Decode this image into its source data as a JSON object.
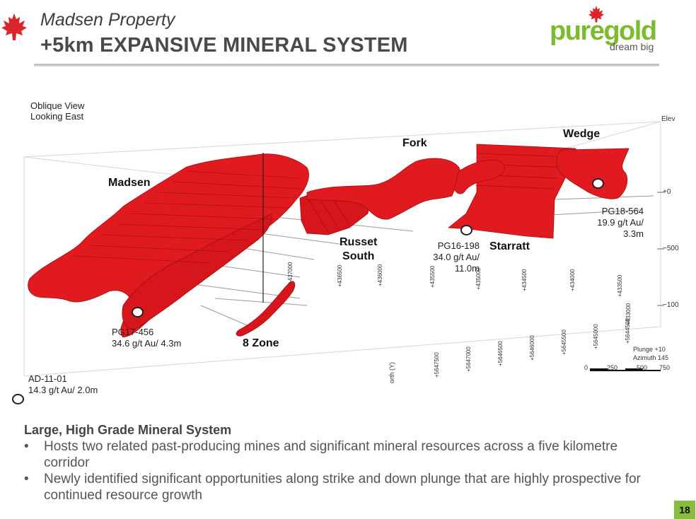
{
  "header": {
    "subtitle": "Madsen Property",
    "title": "+5km EXPANSIVE MINERAL SYSTEM"
  },
  "logo": {
    "brand": "puregold",
    "tagline": "dream big",
    "brand_color": "#7dbb2e",
    "icon": "maple-leaf-icon"
  },
  "figure": {
    "view_label": "Oblique View\nLooking East",
    "zones": {
      "madsen": "Madsen",
      "fork": "Fork",
      "wedge": "Wedge",
      "russet_south": "Russet\nSouth",
      "starratt": "Starratt",
      "eight_zone": "8 Zone"
    },
    "drill_holes": {
      "pg18": "PG18-564\n19.9 g/t Au/\n3.3m",
      "pg16": "PG16-198\n34.0 g/t Au/\n11.0m",
      "pg17": "PG17-456\n34.6 g/t Au/ 4.3m",
      "ad11": "AD-11-01\n14.3 g/t Au/ 2.0m"
    },
    "axis": {
      "elev": "Elev",
      "e0": "+0",
      "e500": "−500",
      "e1000": "−100",
      "north": "orth (Y)",
      "plunge": "Plunge +10",
      "azimuth": "Azimuth 145",
      "scale": [
        "0",
        "250",
        "500",
        "750"
      ],
      "eastings": [
        "+437000",
        "+436500",
        "+436000",
        "+435500",
        "+435000",
        "+434500",
        "+434000",
        "+433500",
        "+433000"
      ],
      "northings": [
        "+5647500",
        "+5647000",
        "+5646500",
        "+5646000",
        "+5645500",
        "+5645000",
        "+5644500"
      ]
    },
    "ore_color": "#e01a1f"
  },
  "bullets": {
    "heading": "Large, High Grade Mineral System",
    "items": [
      "Hosts two related past-producing mines and significant mineral resources across a five kilometre corridor",
      "Newly identified significant opportunities along strike and down plunge that are highly prospective for continued resource growth"
    ],
    "marker": "•"
  },
  "page_number": "18"
}
